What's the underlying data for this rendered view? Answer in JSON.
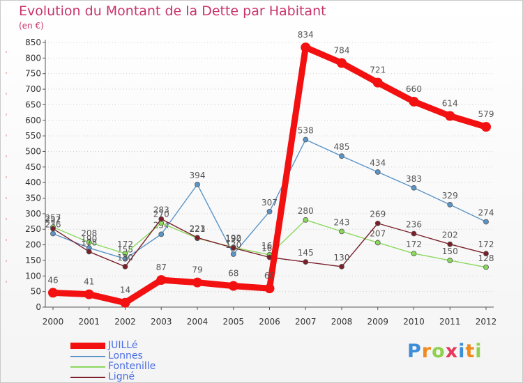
{
  "chart_data": {
    "type": "line",
    "title": "Evolution du Montant de la Dette par Habitant",
    "subtitle": "(en €)",
    "x": [
      "2000",
      "2001",
      "2002",
      "2003",
      "2004",
      "2005",
      "2006",
      "2007",
      "2008",
      "2009",
      "2010",
      "2011",
      "2012"
    ],
    "ylim": [
      0,
      850
    ],
    "yticks": [
      "0",
      "50",
      "100",
      "150",
      "200",
      "250",
      "300",
      "350",
      "400",
      "450",
      "500",
      "550",
      "600",
      "650",
      "700",
      "750",
      "800",
      "850"
    ],
    "grid": "horizontal dashed",
    "legend_position": "bottom-left",
    "series": [
      {
        "name": "Lonnes",
        "color": "#5b94c7",
        "values": [
          236,
          190,
          155,
          234,
          394,
          170,
          307,
          538,
          485,
          434,
          383,
          329,
          274
        ],
        "labels": [
          "236",
          "190",
          "155",
          "234",
          "394",
          "170",
          "307",
          "538",
          "485",
          "434",
          "383",
          "329",
          "274"
        ]
      },
      {
        "name": "Fontenille",
        "color": "#8bd85e",
        "values": [
          257,
          208,
          172,
          270,
          221,
          192,
          168,
          280,
          243,
          207,
          172,
          150,
          128
        ],
        "labels": [
          "257",
          "208",
          "172",
          "270",
          "221",
          "192",
          "168",
          "280",
          "243",
          "207",
          "172",
          "150",
          "128"
        ]
      },
      {
        "name": "Ligné",
        "color": "#7a1f2a",
        "values": [
          252,
          178,
          130,
          283,
          223,
          190,
          160,
          145,
          130,
          269,
          236,
          202,
          172
        ],
        "labels": [
          "252",
          "178",
          "130",
          "283",
          "223",
          "190",
          "160",
          "145",
          "130",
          "269",
          "236",
          "202",
          "172"
        ]
      },
      {
        "name": "JUILLé",
        "color": "#f21010",
        "values": [
          46,
          41,
          14,
          87,
          79,
          68,
          60,
          834,
          784,
          721,
          660,
          614,
          579
        ],
        "labels": [
          "46",
          "41",
          "14",
          "87",
          "79",
          "68",
          "60",
          "834",
          "784",
          "721",
          "660",
          "614",
          "579"
        ]
      }
    ],
    "legend_order": [
      3,
      0,
      1,
      2
    ]
  },
  "logo": {
    "letters": [
      "P",
      "r",
      "o",
      "x",
      "i",
      "t",
      "i"
    ],
    "colors": [
      "#3c8ed8",
      "#f08a1c",
      "#8fd14f",
      "#e8365a",
      "#3c8ed8",
      "#f08a1c",
      "#8fd14f"
    ]
  }
}
